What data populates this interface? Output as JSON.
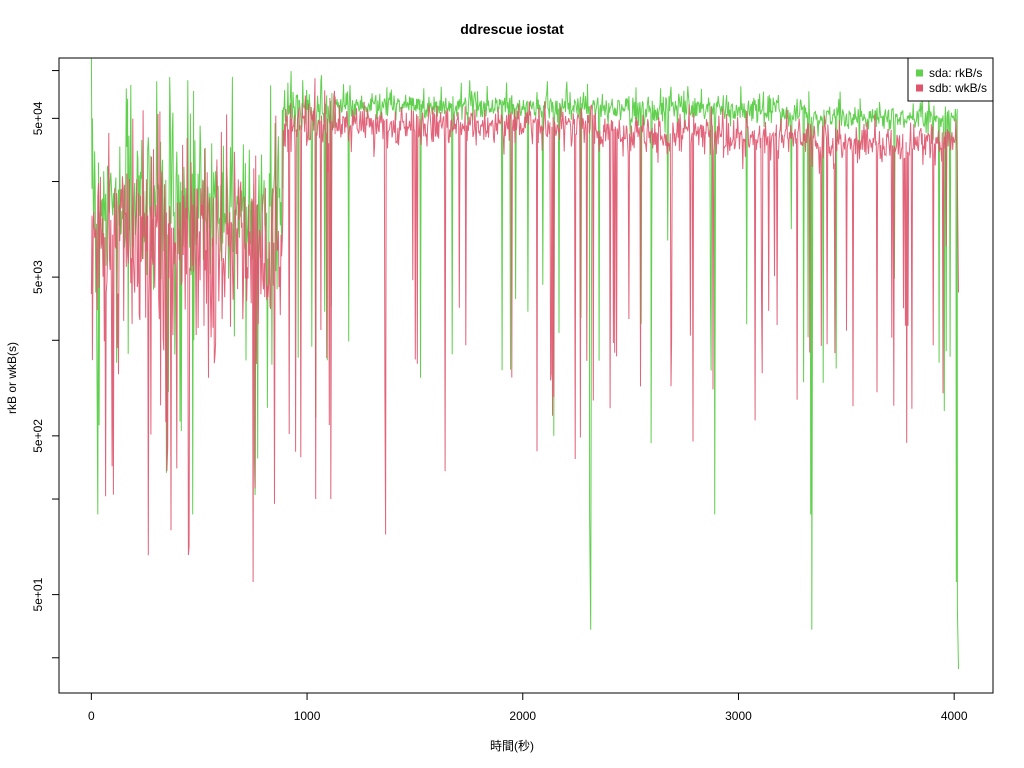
{
  "chart_data": {
    "type": "line",
    "title": "ddrescue iostat",
    "xlabel": "時間(秒)",
    "ylabel": "rkB or wkB(s)",
    "y_scale": "log",
    "xlim": [
      -150,
      4180
    ],
    "ylim": [
      12,
      120000
    ],
    "x_ticks": [
      0,
      1000,
      2000,
      3000,
      4000
    ],
    "x_tick_labels": [
      "0",
      "1000",
      "2000",
      "3000",
      "4000"
    ],
    "y_ticks": [
      50,
      500,
      5000,
      50000
    ],
    "y_tick_labels": [
      "5e+01",
      "5e+02",
      "5e+03",
      "5e+04"
    ],
    "y_minor_ticks": [
      20,
      200,
      2000,
      20000,
      100000
    ],
    "grid": false,
    "legend_position": "top-right",
    "series": [
      {
        "name": "sda: rkB/s",
        "color": "#61d04f",
        "segments": [
          {
            "x_start": 0,
            "x_end": 890,
            "median": 15000,
            "noise": 0.55,
            "peak_freq": 0.05,
            "peak": 100000,
            "dip_freq": 0.05,
            "dip_low": 700
          },
          {
            "x_start": 890,
            "x_end": 1130,
            "median": 55000,
            "noise": 0.15,
            "peak_freq": 0.05,
            "peak": 100000,
            "dip_freq": 0.05,
            "dip_low": 1500
          },
          {
            "x_start": 1130,
            "x_end": 2330,
            "median": 60000,
            "noise": 0.1,
            "peak_freq": 0.05,
            "peak": 90000,
            "dip_freq": 0.04,
            "dip_low": 2000
          },
          {
            "x_start": 2330,
            "x_end": 2930,
            "median": 58000,
            "noise": 0.1,
            "peak_freq": 0.05,
            "peak": 85000,
            "dip_freq": 0.04,
            "dip_low": 2000
          },
          {
            "x_start": 2930,
            "x_end": 3330,
            "median": 55000,
            "noise": 0.1,
            "peak_freq": 0.05,
            "peak": 80000,
            "dip_freq": 0.04,
            "dip_low": 2500
          },
          {
            "x_start": 3330,
            "x_end": 4020,
            "median": 50000,
            "noise": 0.1,
            "peak_freq": 0.05,
            "peak": 80000,
            "dip_freq": 0.04,
            "dip_low": 3000
          }
        ],
        "spikes": [
          [
            0,
            130000
          ],
          [
            5,
            50000
          ],
          [
            20,
            4000
          ],
          [
            25,
            2500
          ],
          [
            30,
            160
          ],
          [
            470,
            160
          ],
          [
            475,
            2000
          ],
          [
            2310,
            160
          ],
          [
            2315,
            30
          ],
          [
            2595,
            450
          ],
          [
            2890,
            160
          ],
          [
            3335,
            160
          ],
          [
            3340,
            30
          ],
          [
            4010,
            60
          ],
          [
            4015,
            40
          ],
          [
            4020,
            17
          ]
        ]
      },
      {
        "name": "sdb: wkB/s",
        "color": "#df536b",
        "segments": [
          {
            "x_start": 0,
            "x_end": 890,
            "median": 8000,
            "noise": 0.65,
            "peak_freq": 0.03,
            "peak": 60000,
            "dip_freq": 0.06,
            "dip_low": 200
          },
          {
            "x_start": 890,
            "x_end": 1130,
            "median": 45000,
            "noise": 0.25,
            "peak_freq": 0.02,
            "peak": 58000,
            "dip_freq": 0.06,
            "dip_low": 500
          },
          {
            "x_start": 1130,
            "x_end": 2330,
            "median": 45000,
            "noise": 0.15,
            "peak_freq": 0.02,
            "peak": 58000,
            "dip_freq": 0.06,
            "dip_low": 1000
          },
          {
            "x_start": 2330,
            "x_end": 2930,
            "median": 40000,
            "noise": 0.15,
            "peak_freq": 0.02,
            "peak": 55000,
            "dip_freq": 0.06,
            "dip_low": 1000
          },
          {
            "x_start": 2930,
            "x_end": 3330,
            "median": 38000,
            "noise": 0.15,
            "peak_freq": 0.02,
            "peak": 50000,
            "dip_freq": 0.06,
            "dip_low": 1500
          },
          {
            "x_start": 3330,
            "x_end": 4020,
            "median": 35000,
            "noise": 0.15,
            "peak_freq": 0.02,
            "peak": 45000,
            "dip_freq": 0.06,
            "dip_low": 1500
          }
        ],
        "spikes": [
          [
            5,
            1500
          ],
          [
            350,
            300
          ],
          [
            750,
            60
          ],
          [
            1040,
            200
          ],
          [
            1110,
            200
          ],
          [
            1640,
            300
          ],
          [
            4015,
            20000
          ],
          [
            4020,
            4000
          ]
        ]
      }
    ]
  }
}
